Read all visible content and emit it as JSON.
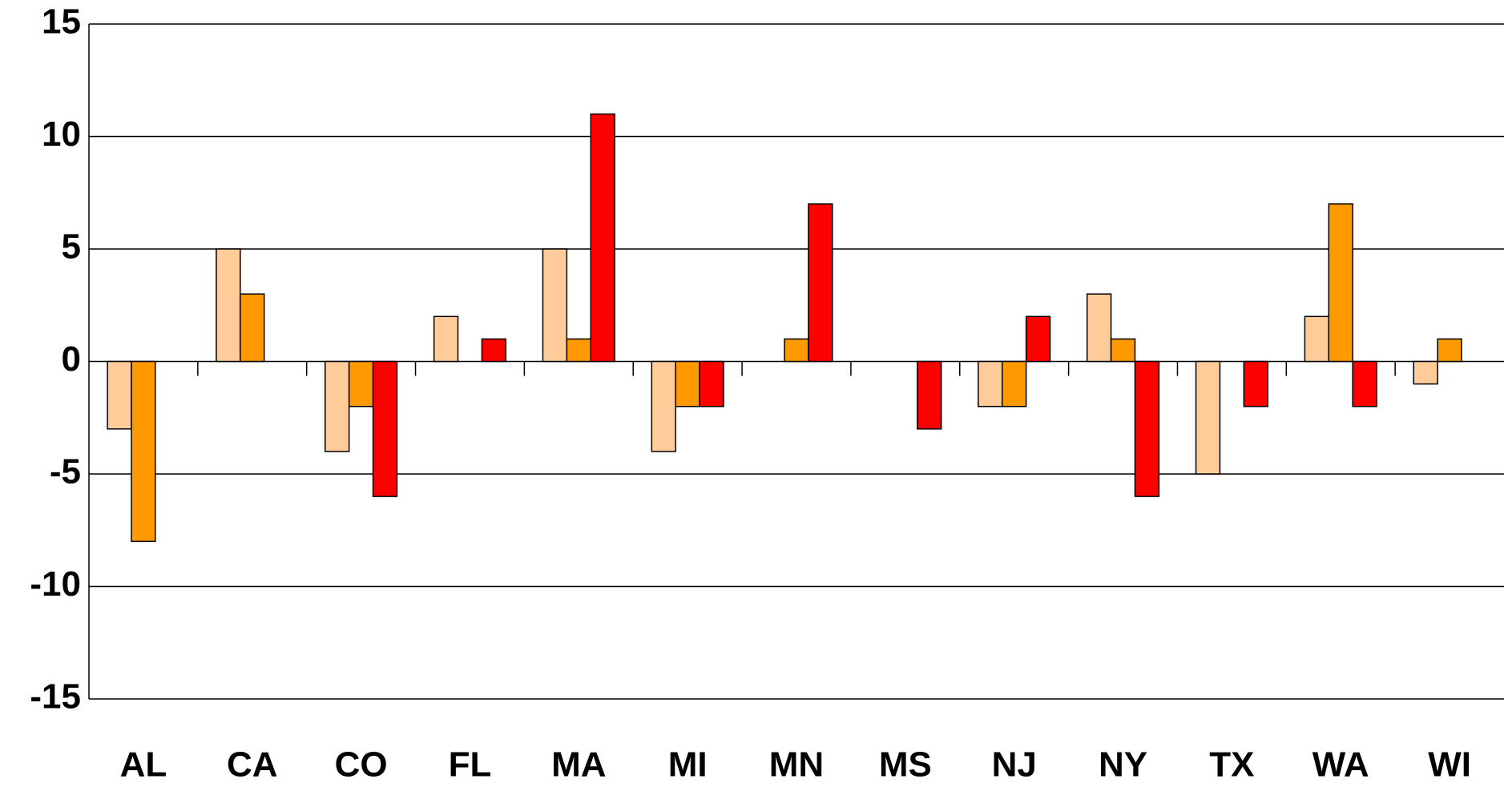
{
  "chart_data": {
    "type": "bar",
    "categories": [
      "AL",
      "CA",
      "CO",
      "FL",
      "MA",
      "MI",
      "MN",
      "MS",
      "NJ",
      "NY",
      "TX",
      "WA",
      "WI"
    ],
    "series": [
      {
        "color": "#FFCC99",
        "values": [
          -3,
          5,
          -4,
          2,
          5,
          -4,
          0,
          0,
          -2,
          3,
          -5,
          2,
          -1
        ]
      },
      {
        "color": "#FF9900",
        "values": [
          -8,
          3,
          -2,
          0,
          1,
          -2,
          1,
          0,
          -2,
          1,
          0,
          7,
          1
        ]
      },
      {
        "color": "#FF0000",
        "values": [
          0,
          0,
          -6,
          1,
          11,
          -2,
          7,
          -3,
          2,
          -6,
          -2,
          -2,
          0
        ]
      }
    ],
    "ylim": [
      -15,
      15
    ],
    "yticks": [
      -15,
      -10,
      -5,
      0,
      5,
      10,
      15
    ],
    "grid": true
  }
}
